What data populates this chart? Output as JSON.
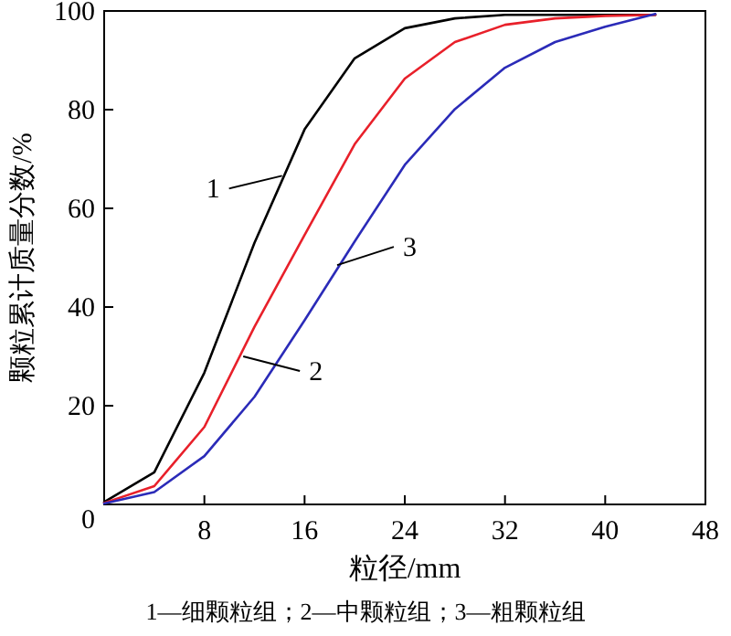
{
  "chart_data": {
    "type": "line",
    "xlabel": "粒径/mm",
    "ylabel": "颗粒累计质量分数/%",
    "x": [
      0,
      4,
      8,
      12,
      16,
      20,
      24,
      28,
      32,
      36,
      40,
      44
    ],
    "series": [
      {
        "color": "#000000",
        "values": [
          0.5,
          6.5,
          26.7,
          53,
          76,
          90.4,
          96.5,
          98.5,
          99.2,
          99.2,
          99.2,
          99.2
        ]
      },
      {
        "color": "#e8202a",
        "values": [
          0.3,
          3.7,
          15.7,
          36,
          54.6,
          73,
          86.3,
          93.7,
          97.2,
          98.5,
          99,
          99.2
        ]
      },
      {
        "color": "#2b2bb8",
        "values": [
          0.2,
          2.5,
          9.8,
          21.8,
          37.3,
          53.3,
          68.8,
          80.1,
          88.5,
          93.7,
          96.8,
          99.4
        ]
      }
    ],
    "xlim": [
      0,
      48
    ],
    "ylim": [
      0,
      100
    ],
    "xticks": [
      {
        "value": 0,
        "label": null
      },
      8,
      16,
      24,
      32,
      40,
      48
    ],
    "yticks": [
      0,
      20,
      40,
      60,
      80,
      100
    ],
    "grid": false,
    "marker": "none",
    "line_style": "solid",
    "annotations": [
      {
        "text": "1",
        "x": 14.2,
        "y": 66.6
      },
      {
        "text": "2",
        "x": 11.1,
        "y": 30
      },
      {
        "text": "3",
        "x": 18.6,
        "y": 48.5
      },
      "1—细颗粒组；2—中颗粒组；3—粗颗粒组"
    ]
  }
}
